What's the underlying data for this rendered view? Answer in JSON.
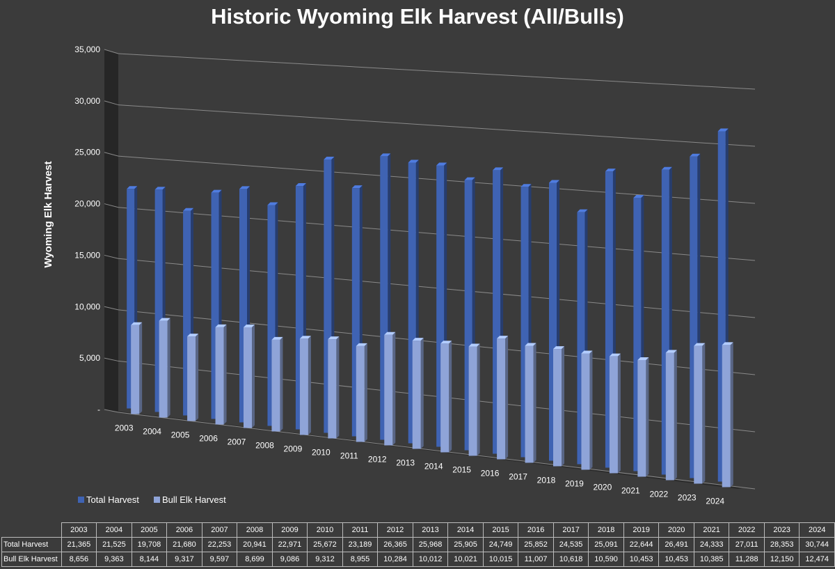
{
  "chart_data": {
    "type": "bar",
    "title": "Historic Wyoming Elk Harvest (All/Bulls)",
    "ylabel": "Wyoming Elk Harvest",
    "ylim": [
      0,
      35000
    ],
    "yticks": [
      0,
      5000,
      10000,
      15000,
      20000,
      25000,
      30000,
      35000
    ],
    "ytick_labels": [
      "-",
      "5,000",
      "10,000",
      "15,000",
      "20,000",
      "25,000",
      "30,000",
      "35,000"
    ],
    "categories": [
      "2003",
      "2004",
      "2005",
      "2006",
      "2007",
      "2008",
      "2009",
      "2010",
      "2011",
      "2012",
      "2013",
      "2014",
      "2015",
      "2016",
      "2017",
      "2018",
      "2019",
      "2020",
      "2021",
      "2022",
      "2023",
      "2024"
    ],
    "series": [
      {
        "name": "Total Harvest",
        "color": "#3f63b3",
        "values": [
          21365,
          21525,
          19708,
          21680,
          22253,
          20941,
          22971,
          25672,
          23189,
          26365,
          25968,
          25905,
          24749,
          25852,
          24535,
          25091,
          22644,
          26491,
          24333,
          27011,
          28353,
          30744
        ],
        "labels": [
          "21,365",
          "21,525",
          "19,708",
          "21,680",
          "22,253",
          "20,941",
          "22,971",
          "25,672",
          "23,189",
          "26,365",
          "25,968",
          "25,905",
          "24,749",
          "25,852",
          "24,535",
          "25,091",
          "22,644",
          "26,491",
          "24,333",
          "27,011",
          "28,353",
          "30,744"
        ]
      },
      {
        "name": "Bull Elk Harvest",
        "color": "#8fa4d8",
        "values": [
          8656,
          9363,
          8144,
          9317,
          9597,
          8699,
          9086,
          9312,
          8955,
          10284,
          10012,
          10021,
          10015,
          11007,
          10618,
          10590,
          10453,
          10453,
          10385,
          11288,
          12150,
          12474
        ],
        "labels": [
          "8,656",
          "9,363",
          "8,144",
          "9,317",
          "9,597",
          "8,699",
          "9,086",
          "9,312",
          "8,955",
          "10,284",
          "10,012",
          "10,021",
          "10,015",
          "11,007",
          "10,618",
          "10,590",
          "10,453",
          "10,453",
          "10,385",
          "11,288",
          "12,150",
          "12,474"
        ]
      }
    ],
    "legend_position": "bottom-left",
    "grid": true
  }
}
